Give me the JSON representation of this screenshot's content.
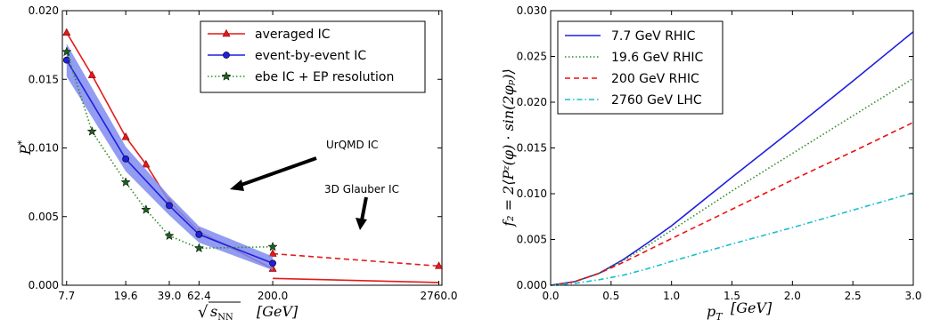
{
  "chart_data": [
    {
      "type": "line",
      "xlabel": "√s_NN  [GeV]",
      "ylabel": "P*",
      "x_tick_labels": [
        "7.7",
        "19.6",
        "39.0",
        "62.4",
        "200.0",
        "2760.0"
      ],
      "x_tick_values": [
        7.7,
        19.6,
        39.0,
        62.4,
        200.0,
        2760.0
      ],
      "xlim": [
        7.2,
        2900
      ],
      "ylim": [
        0,
        0.02
      ],
      "y_ticks": [
        0.0,
        0.005,
        0.01,
        0.015,
        0.02
      ],
      "y_tick_labels": [
        "0.000",
        "0.005",
        "0.010",
        "0.015",
        "0.020"
      ],
      "legend_position": "upper-right",
      "series": [
        {
          "name": "averaged IC",
          "color": "#e31a1c",
          "marker": "triangle",
          "dash": "solid",
          "x": [
            7.7,
            11.5,
            19.6,
            27,
            39,
            62.4,
            200
          ],
          "y": [
            0.0184,
            0.0153,
            0.0108,
            0.0088,
            0.0061,
            0.0039,
            0.0012
          ]
        },
        {
          "name": "averaged IC (UrQMD IC)",
          "color": "#e31a1c",
          "marker": "none",
          "dash": "solid",
          "x": [
            200,
            2760
          ],
          "y": [
            0.0005,
            0.0002
          ]
        },
        {
          "name": "averaged IC (3D Glauber IC)",
          "color": "#e31a1c",
          "marker": "triangle",
          "dash": "dashed",
          "x": [
            200,
            2760
          ],
          "y": [
            0.0023,
            0.0014
          ]
        },
        {
          "name": "event-by-event IC",
          "color": "#1f1fe0",
          "band_color": "#7f8bef",
          "marker": "circle",
          "dash": "solid",
          "x": [
            7.7,
            19.6,
            39,
            62.4,
            200
          ],
          "y": [
            0.0164,
            0.0092,
            0.0058,
            0.0037,
            0.0016
          ],
          "band": [
            0.0012,
            0.0009,
            0.0007,
            0.0006,
            0.0005
          ]
        },
        {
          "name": "ebe IC + EP resolution",
          "color": "#2c8c2c",
          "marker": "star",
          "dash": "dotted",
          "x": [
            7.7,
            11.5,
            19.6,
            27,
            39,
            62.4,
            200
          ],
          "y": [
            0.017,
            0.0112,
            0.0075,
            0.0055,
            0.0036,
            0.0027,
            0.0028
          ]
        }
      ],
      "annotations": [
        "UrQMD IC",
        "3D Glauber IC"
      ]
    },
    {
      "type": "line",
      "xlabel": "p_T  [GeV]",
      "ylabel": "f₂ = 2⟨P^z(φ) · sin(2φ_p)⟩",
      "xlim": [
        0,
        3.0
      ],
      "ylim": [
        0,
        0.03
      ],
      "x_ticks": [
        0.0,
        0.5,
        1.0,
        1.5,
        2.0,
        2.5,
        3.0
      ],
      "x_tick_labels": [
        "0.0",
        "0.5",
        "1.0",
        "1.5",
        "2.0",
        "2.5",
        "3.0"
      ],
      "y_ticks": [
        0.0,
        0.005,
        0.01,
        0.015,
        0.02,
        0.025,
        0.03
      ],
      "y_tick_labels": [
        "0.000",
        "0.005",
        "0.010",
        "0.015",
        "0.020",
        "0.025",
        "0.030"
      ],
      "legend_position": "upper-left",
      "series": [
        {
          "name": "7.7 GeV RHIC",
          "color": "#1f1fe0",
          "dash": "solid",
          "x": [
            0,
            0.2,
            0.4,
            0.6,
            0.8,
            1.0,
            1.5,
            2.0,
            2.5,
            3.0
          ],
          "y": [
            0,
            0.0004,
            0.0013,
            0.0028,
            0.0046,
            0.0065,
            0.0118,
            0.017,
            0.0223,
            0.0277
          ]
        },
        {
          "name": "19.6 GeV RHIC",
          "color": "#2c8c2c",
          "dash": "dotted",
          "x": [
            0,
            0.2,
            0.4,
            0.6,
            0.8,
            1.0,
            1.5,
            2.0,
            2.5,
            3.0
          ],
          "y": [
            0,
            0.0004,
            0.0013,
            0.0027,
            0.0043,
            0.006,
            0.0103,
            0.0144,
            0.0185,
            0.0226
          ]
        },
        {
          "name": "200 GeV RHIC",
          "color": "#ee1111",
          "dash": "dashed",
          "x": [
            0,
            0.2,
            0.4,
            0.6,
            0.8,
            1.0,
            1.5,
            2.0,
            2.5,
            3.0
          ],
          "y": [
            0,
            0.0004,
            0.0013,
            0.0025,
            0.0038,
            0.0051,
            0.0083,
            0.0115,
            0.0146,
            0.0178
          ]
        },
        {
          "name": "2760 GeV LHC",
          "color": "#17becf",
          "dash": "dashdot",
          "x": [
            0,
            0.2,
            0.4,
            0.6,
            0.8,
            1.0,
            1.5,
            2.0,
            2.5,
            3.0
          ],
          "y": [
            0,
            0.0002,
            0.0006,
            0.0011,
            0.0018,
            0.0026,
            0.0045,
            0.0063,
            0.0082,
            0.0101
          ]
        }
      ]
    }
  ],
  "labels": {
    "left_ylabel_main": "P",
    "left_ylabel_sup": "*",
    "left_xlabel_sqrt": "√",
    "left_xlabel_s": "s",
    "left_xlabel_sub": "NN",
    "left_xlabel_unit": "[GeV]",
    "right_xlabel_p": "p",
    "right_xlabel_sub": "T",
    "right_xlabel_unit": "[GeV]",
    "right_ylabel": "f₂ = 2⟨Pᶻ(φ) · sin(2φₚ)⟩",
    "annot_urqmd": "UrQMD IC",
    "annot_glauber": "3D Glauber IC"
  },
  "legend_left": [
    "averaged IC",
    "event-by-event IC",
    "ebe IC + EP resolution"
  ],
  "legend_right": [
    "7.7 GeV RHIC",
    "19.6 GeV RHIC",
    "200 GeV RHIC",
    "2760 GeV LHC"
  ]
}
